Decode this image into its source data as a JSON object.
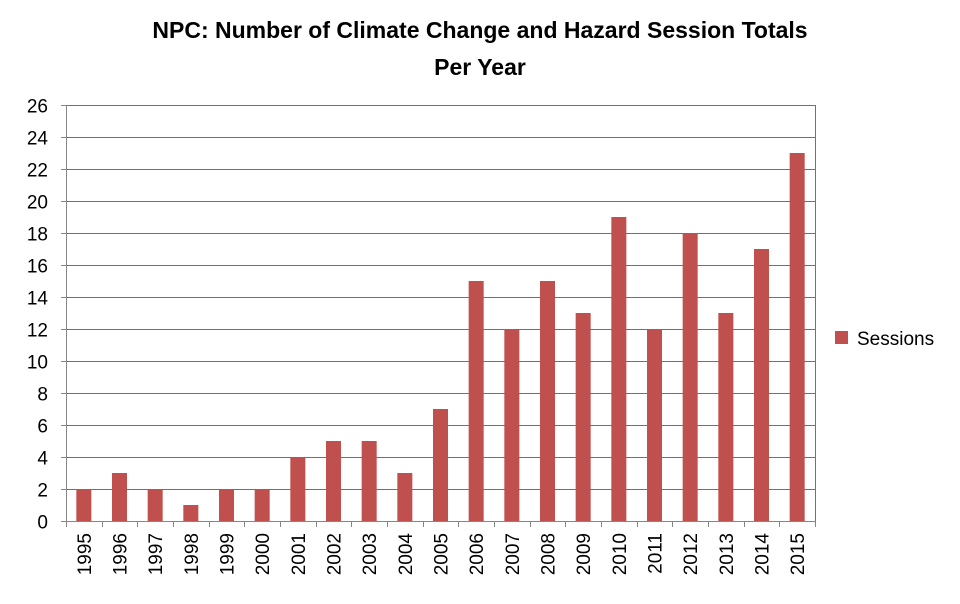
{
  "chart_data": {
    "type": "bar",
    "title": "NPC: Number of Climate Change and Hazard Session Totals Per Year",
    "title_lines": [
      "NPC: Number of Climate Change and Hazard Session Totals",
      "Per Year"
    ],
    "categories": [
      "1995",
      "1996",
      "1997",
      "1998",
      "1999",
      "2000",
      "2001",
      "2002",
      "2003",
      "2004",
      "2005",
      "2006",
      "2007",
      "2008",
      "2009",
      "2010",
      "2011",
      "2012",
      "2013",
      "2014",
      "2015"
    ],
    "series": [
      {
        "name": "Sessions",
        "color": "#C0504D",
        "values": [
          2,
          3,
          2,
          1,
          2,
          2,
          4,
          5,
          5,
          3,
          7,
          15,
          12,
          15,
          13,
          19,
          12,
          18,
          13,
          17,
          23
        ]
      }
    ],
    "xlabel": "",
    "ylabel": "",
    "ylim": [
      0,
      26
    ],
    "yticks": [
      0,
      2,
      4,
      6,
      8,
      10,
      12,
      14,
      16,
      18,
      20,
      22,
      24,
      26
    ],
    "grid": true,
    "gridline_color": "#C0504D",
    "legend": "right",
    "xtick_rotation": "vertical"
  }
}
